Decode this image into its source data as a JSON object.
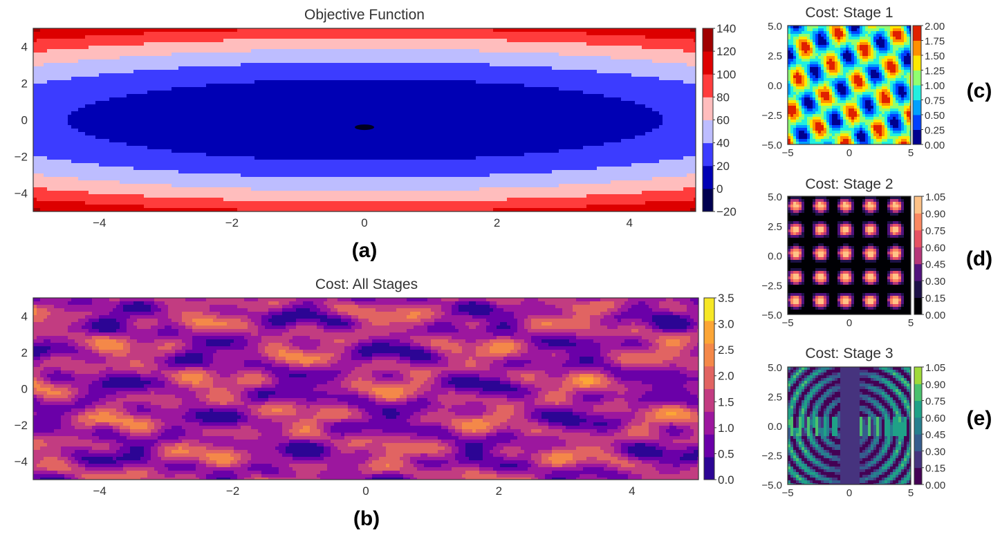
{
  "figure": {
    "panel_labels": [
      "(a)",
      "(b)",
      "(c)",
      "(d)",
      "(e)"
    ]
  },
  "chart_data": [
    {
      "id": "a",
      "type": "contourf",
      "title": "Objective Function",
      "panel_label": "(a)",
      "colormap": "seismic",
      "xlim": [
        -5,
        5
      ],
      "ylim": [
        -5,
        5
      ],
      "xticks": [
        -4,
        -2,
        0,
        2,
        4
      ],
      "yticks": [
        -4,
        -2,
        0,
        2,
        4
      ],
      "colorbar_ticks": [
        "−20",
        "0",
        "20",
        "40",
        "60",
        "80",
        "100",
        "120",
        "140"
      ],
      "levels": [
        -20,
        0,
        20,
        40,
        60,
        80,
        100,
        120,
        140
      ],
      "band_colors": [
        "#000050",
        "#0000b4",
        "#3c3cff",
        "#bdbdff",
        "#ffbdbd",
        "#ff3c3c",
        "#dd0000",
        "#a00000"
      ],
      "function": "x^2 + 4*y^2 (elliptical bowl, minimum near 0,0)"
    },
    {
      "id": "b",
      "type": "contourf",
      "title": "Cost: All Stages",
      "panel_label": "(b)",
      "colormap": "plasma",
      "xlim": [
        -5,
        5
      ],
      "ylim": [
        -5,
        5
      ],
      "xticks": [
        -4,
        -2,
        0,
        2,
        4
      ],
      "yticks": [
        -4,
        -2,
        0,
        2,
        4
      ],
      "colorbar_ticks": [
        "0.0",
        "0.5",
        "1.0",
        "1.5",
        "2.0",
        "2.5",
        "3.0",
        "3.5"
      ],
      "levels": [
        0,
        0.5,
        1.0,
        1.5,
        2.0,
        2.5,
        3.0,
        3.5
      ],
      "band_colors": [
        "#2c0594",
        "#6a00a8",
        "#9c179e",
        "#c23c81",
        "#e16462",
        "#f48849",
        "#fca636",
        "#f6e726"
      ]
    },
    {
      "id": "c",
      "type": "contourf",
      "title": "Cost: Stage 1",
      "panel_label": "(c)",
      "colormap": "jet",
      "xlim": [
        -5,
        5
      ],
      "ylim": [
        -5,
        5
      ],
      "xticks": [
        "−5",
        "0",
        "5"
      ],
      "yticks": [
        "5.0",
        "2.5",
        "0.0",
        "−2.5",
        "−5.0"
      ],
      "colorbar_ticks": [
        "0.00",
        "0.25",
        "0.50",
        "0.75",
        "1.00",
        "1.25",
        "1.50",
        "1.75",
        "2.00"
      ],
      "levels": [
        0,
        0.25,
        0.5,
        0.75,
        1.0,
        1.25,
        1.5,
        1.75,
        2.0
      ],
      "band_colors": [
        "#00008f",
        "#0040ff",
        "#00a0ff",
        "#20f0e0",
        "#90ff70",
        "#ffe800",
        "#ff9000",
        "#e02000"
      ]
    },
    {
      "id": "d",
      "type": "contourf",
      "title": "Cost: Stage 2",
      "panel_label": "(d)",
      "colormap": "magma",
      "xlim": [
        -5,
        5
      ],
      "ylim": [
        -5,
        5
      ],
      "xticks": [
        "−5",
        "0",
        "5"
      ],
      "yticks": [
        "5.0",
        "2.5",
        "0.0",
        "−2.5",
        "−5.0"
      ],
      "colorbar_ticks": [
        "0.00",
        "0.15",
        "0.30",
        "0.45",
        "0.60",
        "0.75",
        "0.90",
        "1.05"
      ],
      "levels": [
        0,
        0.15,
        0.3,
        0.45,
        0.6,
        0.75,
        0.9,
        1.05
      ],
      "band_colors": [
        "#000004",
        "#1d1147",
        "#51127c",
        "#b63679",
        "#e75263",
        "#fb8861",
        "#fec287"
      ]
    },
    {
      "id": "e",
      "type": "contourf",
      "title": "Cost: Stage 3",
      "panel_label": "(e)",
      "colormap": "viridis",
      "xlim": [
        -5,
        5
      ],
      "ylim": [
        -5,
        5
      ],
      "xticks": [
        "−5",
        "0",
        "5"
      ],
      "yticks": [
        "5.0",
        "2.5",
        "0.0",
        "−2.5",
        "−5.0"
      ],
      "colorbar_ticks": [
        "0.00",
        "0.15",
        "0.30",
        "0.45",
        "0.60",
        "0.75",
        "0.90",
        "1.05"
      ],
      "levels": [
        0,
        0.15,
        0.3,
        0.45,
        0.6,
        0.75,
        0.9,
        1.05
      ],
      "band_colors": [
        "#440154",
        "#46337e",
        "#365c8d",
        "#277f8e",
        "#1fa187",
        "#4ac16d",
        "#a0da39"
      ]
    }
  ]
}
